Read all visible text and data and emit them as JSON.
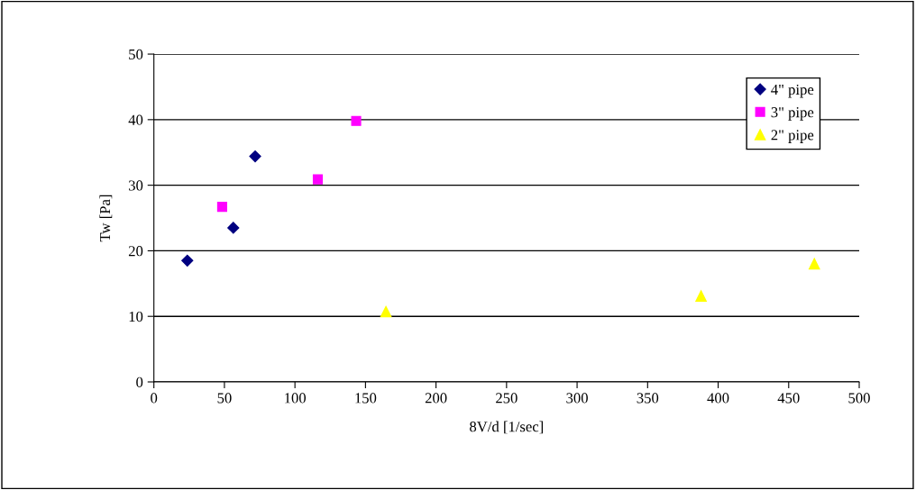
{
  "chart_data": {
    "type": "scatter",
    "xlabel": "8V/d [1/sec]",
    "ylabel": "Tw [Pa]",
    "xlim": [
      0,
      500
    ],
    "xticks": [
      0,
      50,
      100,
      150,
      200,
      250,
      300,
      350,
      400,
      450,
      500
    ],
    "ylim": [
      0,
      50
    ],
    "yticks": [
      0,
      10,
      20,
      30,
      40,
      50
    ],
    "grid": "y",
    "legend": "top right",
    "series": [
      {
        "name": "4\" pipe",
        "color": "#000080",
        "marker": "diamond",
        "x": [
          23.7,
          56.3,
          71.8
        ],
        "values": [
          18.5,
          23.5,
          34.4
        ]
      },
      {
        "name": "3\" pipe",
        "color": "#ff00ff",
        "marker": "square",
        "x": [
          48.4,
          116.2,
          143.4
        ],
        "values": [
          26.7,
          30.9,
          39.8
        ]
      },
      {
        "name": "2\" pipe",
        "color": "#ffff00",
        "marker": "triangle",
        "x": [
          164.5,
          387.9,
          468.2
        ],
        "values": [
          10.7,
          13.1,
          18.0
        ]
      }
    ]
  }
}
